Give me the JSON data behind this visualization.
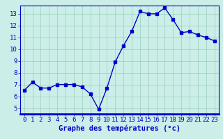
{
  "hours": [
    0,
    1,
    2,
    3,
    4,
    5,
    6,
    7,
    8,
    9,
    10,
    11,
    12,
    13,
    14,
    15,
    16,
    17,
    18,
    19,
    20,
    21,
    22,
    23
  ],
  "temps": [
    6.5,
    7.2,
    6.7,
    6.7,
    7.0,
    7.0,
    7.0,
    6.8,
    6.2,
    4.9,
    6.7,
    8.9,
    10.3,
    11.5,
    13.2,
    13.0,
    13.0,
    13.5,
    12.5,
    11.4,
    11.5,
    11.2,
    11.0,
    10.7
  ],
  "line_color": "#0000cc",
  "bg_color": "#cceee8",
  "grid_color": "#99ccbb",
  "axis_color": "#0000cc",
  "xlabel": "Graphe des températures (°c)",
  "ylim": [
    4.5,
    13.7
  ],
  "xlim": [
    -0.5,
    23.5
  ],
  "yticks": [
    5,
    6,
    7,
    8,
    9,
    10,
    11,
    12,
    13
  ],
  "xtick_labels": [
    "0",
    "1",
    "2",
    "3",
    "4",
    "5",
    "6",
    "7",
    "8",
    "9",
    "10",
    "11",
    "12",
    "13",
    "14",
    "15",
    "16",
    "17",
    "18",
    "19",
    "20",
    "21",
    "22",
    "23"
  ],
  "marker_size": 2.5,
  "line_width": 1.0,
  "xlabel_fontsize": 7.5,
  "tick_fontsize": 6.5
}
